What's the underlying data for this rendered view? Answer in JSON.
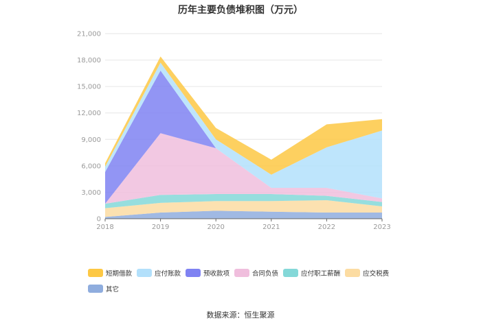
{
  "chart_data": {
    "type": "area",
    "stacked": true,
    "title": "历年主要负债堆积图（万元）",
    "x": [
      "2018",
      "2019",
      "2020",
      "2021",
      "2022",
      "2023"
    ],
    "ylim": [
      0,
      21000
    ],
    "yticks": [
      "0",
      "3,000",
      "6,000",
      "9,000",
      "12,000",
      "15,000",
      "18,000",
      "21,000"
    ],
    "grid": true,
    "legend_position": "bottom",
    "series": [
      {
        "name": "其它",
        "color": "#8fadde",
        "values": [
          200,
          700,
          900,
          800,
          700,
          700
        ]
      },
      {
        "name": "应交税费",
        "color": "#fcdca2",
        "values": [
          1000,
          1100,
          1100,
          1200,
          1400,
          700
        ]
      },
      {
        "name": "应付职工薪酬",
        "color": "#84d8d8",
        "values": [
          500,
          900,
          800,
          800,
          500,
          500
        ]
      },
      {
        "name": "合同负债",
        "color": "#f0bedd",
        "values": [
          0,
          7000,
          5200,
          700,
          900,
          400
        ]
      },
      {
        "name": "预收款项",
        "color": "#7f82f2",
        "values": [
          3600,
          7100,
          0,
          0,
          0,
          0
        ]
      },
      {
        "name": "应付账款",
        "color": "#b3e0fb",
        "values": [
          600,
          900,
          1000,
          1500,
          4600,
          7700
        ]
      },
      {
        "name": "短期借款",
        "color": "#fdc844",
        "values": [
          400,
          700,
          1300,
          1700,
          2600,
          1300
        ]
      }
    ]
  },
  "legend_order": [
    6,
    5,
    4,
    3,
    2,
    1,
    0
  ],
  "source": "数据来源：恒生聚源"
}
